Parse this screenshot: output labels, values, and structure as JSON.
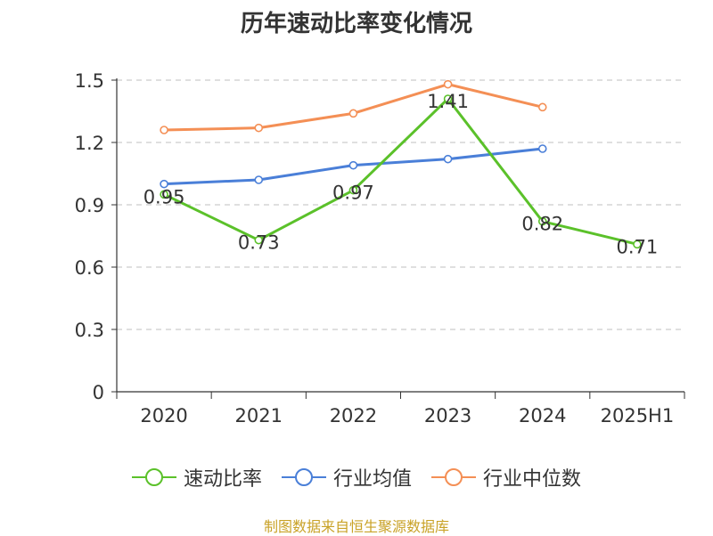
{
  "chart_data": {
    "type": "line",
    "title": "历年速动比率变化情况",
    "categories": [
      "2020",
      "2021",
      "2022",
      "2023",
      "2024",
      "2025H1"
    ],
    "y_ticks": [
      "0",
      "0.3",
      "0.6",
      "0.9",
      "1.2",
      "1.5"
    ],
    "ylim": [
      0,
      1.5
    ],
    "grid": true,
    "legend_position": "bottom",
    "series": [
      {
        "name": "速动比率",
        "color": "#5bc12a",
        "values": [
          0.95,
          0.73,
          0.97,
          1.41,
          0.82,
          0.71
        ],
        "labels": [
          "0.95",
          "0.73",
          "0.97",
          "1.41",
          "0.82",
          "0.71"
        ]
      },
      {
        "name": "行业均值",
        "color": "#4a7fd8",
        "values": [
          1.0,
          1.02,
          1.09,
          1.12,
          1.17,
          null
        ]
      },
      {
        "name": "行业中位数",
        "color": "#f48f55",
        "values": [
          1.26,
          1.27,
          1.34,
          1.48,
          1.37,
          null
        ]
      }
    ]
  },
  "footer": {
    "source": "制图数据来自恒生聚源数据库"
  }
}
